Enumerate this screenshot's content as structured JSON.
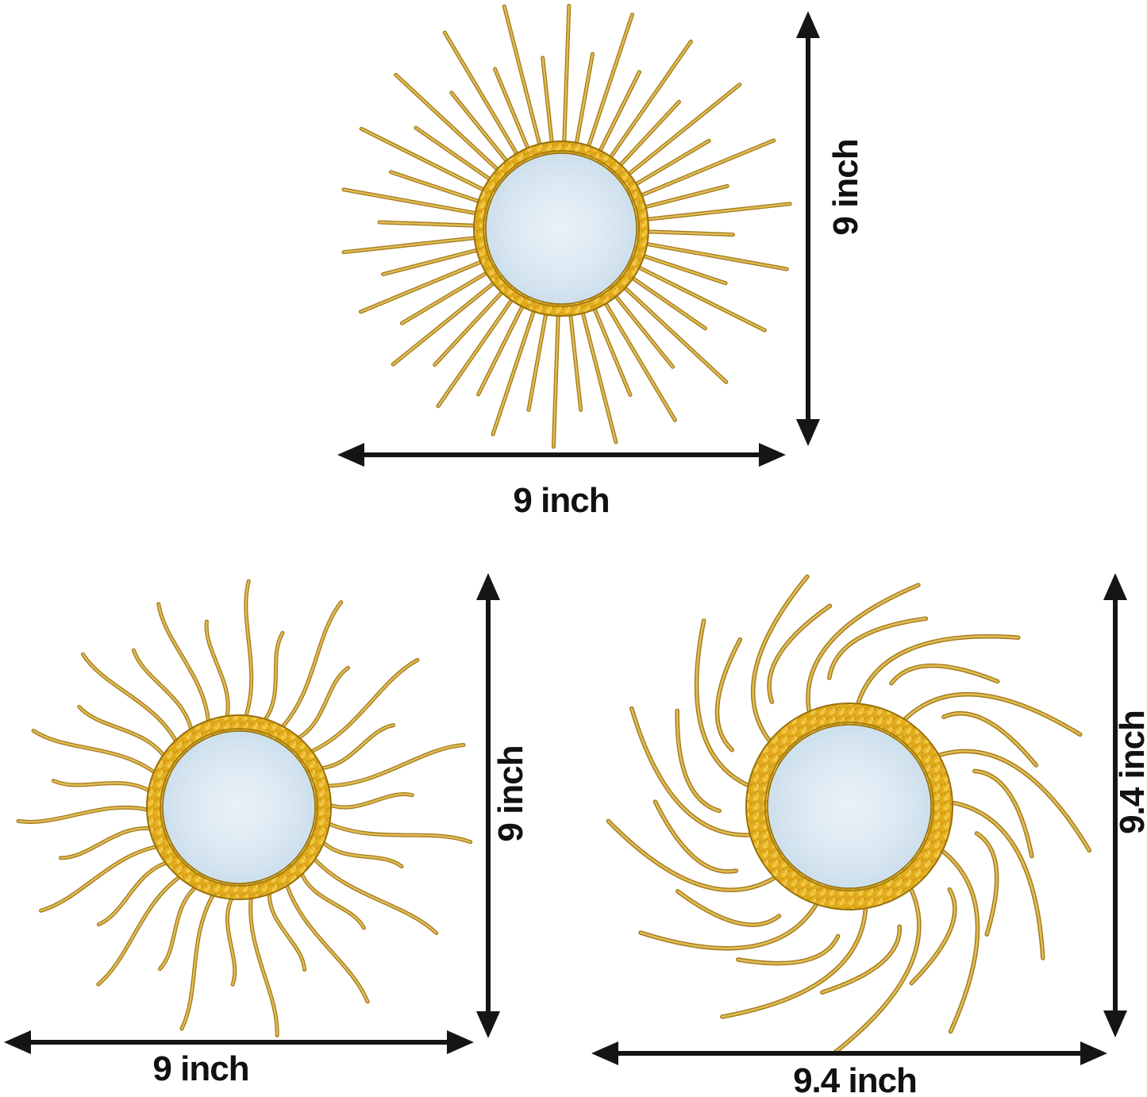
{
  "image_title": "",
  "colors": {
    "background": "#FFFFFF",
    "arrow_black": "#151515",
    "label_text": "#111111",
    "ray_gold_dark": "#A5791B",
    "ray_gold_light": "#DFBD55",
    "ring_gold_base": "#E6AF1F",
    "ring_gold_rim": "#96700B",
    "ring_gold_inner_rim": "#A67E10",
    "glass_blue_center": "#EAF1F7",
    "glass_blue_mid": "#DCE9F3",
    "glass_blue_edge": "#CDDFEC"
  },
  "mirrors": [
    {
      "id": "top",
      "style": "straight-rays-sunburst",
      "width_label": "9 inch",
      "height_label": "9 inch"
    },
    {
      "id": "bottom-left",
      "style": "wavy-rays-sunburst",
      "width_label": "9 inch",
      "height_label": "9 inch"
    },
    {
      "id": "bottom-right",
      "style": "curved-rays-sunburst",
      "width_label": "9.4 inch",
      "height_label": "9.4 inch"
    }
  ]
}
